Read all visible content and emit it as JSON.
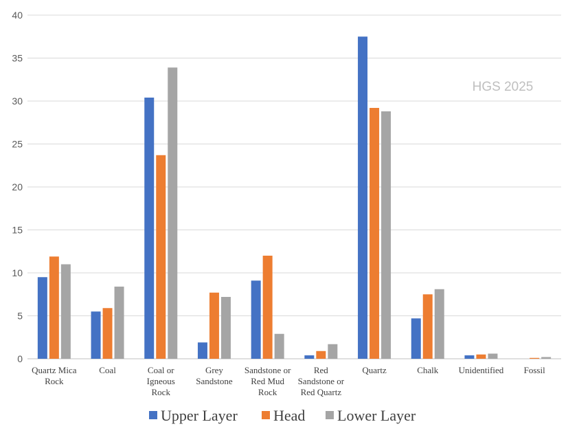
{
  "chart_data": {
    "type": "bar",
    "categories": [
      [
        "Quartz Mica",
        "Rock"
      ],
      [
        "Coal"
      ],
      [
        "Coal or",
        "Igneous",
        "Rock"
      ],
      [
        "Grey",
        "Sandstone"
      ],
      [
        "Sandstone or",
        "Red Mud",
        "Rock"
      ],
      [
        "Red",
        "Sandstone or",
        "Red Quartz"
      ],
      [
        "Quartz"
      ],
      [
        "Chalk"
      ],
      [
        "Unidentified"
      ],
      [
        "Fossil"
      ]
    ],
    "series": [
      {
        "name": "Upper Layer",
        "color": "#4472c4",
        "values": [
          9.5,
          5.5,
          30.4,
          1.9,
          9.1,
          0.4,
          37.5,
          4.7,
          0.4,
          0
        ]
      },
      {
        "name": "Head",
        "color": "#ed7d31",
        "values": [
          11.9,
          5.9,
          23.7,
          7.7,
          12.0,
          0.9,
          29.2,
          7.5,
          0.5,
          0.1
        ]
      },
      {
        "name": "Lower Layer",
        "color": "#a5a5a5",
        "values": [
          11.0,
          8.4,
          33.9,
          7.2,
          2.9,
          1.7,
          28.8,
          8.1,
          0.6,
          0.2
        ]
      }
    ],
    "ylim": [
      0,
      40
    ],
    "yticks": [
      0,
      5,
      10,
      15,
      20,
      25,
      30,
      35,
      40
    ],
    "grid": true,
    "legend_position": "bottom",
    "annotation": "HGS 2025"
  }
}
